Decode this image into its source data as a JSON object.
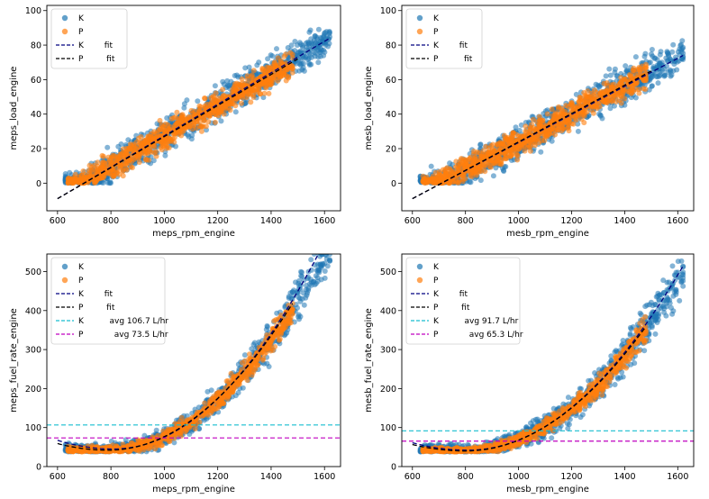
{
  "chart_data": [
    {
      "type": "scatter",
      "title": "",
      "xlabel": "meps_rpm_engine",
      "ylabel": "meps_load_engine",
      "xlim": [
        560,
        1660
      ],
      "ylim": [
        -16,
        103
      ],
      "xticks": [
        600,
        800,
        1000,
        1200,
        1400,
        1600
      ],
      "yticks": [
        0,
        20,
        40,
        60,
        80,
        100
      ],
      "legend_position": "upper-left",
      "series": [
        {
          "name": "K",
          "kind": "scatter",
          "color": "#1f77b4"
        },
        {
          "name": "P",
          "kind": "scatter",
          "color": "#ff7f0e"
        },
        {
          "name": "K        fit",
          "kind": "line",
          "color": "#000080",
          "dash": true,
          "x": [
            600,
            1620
          ],
          "y": [
            -9,
            84
          ]
        },
        {
          "name": "P         fit",
          "kind": "line",
          "color": "#000000",
          "dash": true,
          "x": [
            600,
            1500
          ],
          "y": [
            -9,
            72
          ]
        }
      ],
      "cloud": {
        "seed": 11,
        "model": "load",
        "K": {
          "x": [
            630,
            1620
          ],
          "a": -9,
          "b": 0.091
        },
        "P": {
          "x": [
            640,
            1480
          ],
          "a": -8,
          "b": 0.088
        }
      }
    },
    {
      "type": "scatter",
      "title": "",
      "xlabel": "mesb_rpm_engine",
      "ylabel": "mesb_load_engine",
      "xlim": [
        560,
        1660
      ],
      "ylim": [
        -16,
        103
      ],
      "xticks": [
        600,
        800,
        1000,
        1200,
        1400,
        1600
      ],
      "yticks": [
        0,
        20,
        40,
        60,
        80,
        100
      ],
      "legend_position": "upper-left",
      "series": [
        {
          "name": "K",
          "kind": "scatter",
          "color": "#1f77b4"
        },
        {
          "name": "P",
          "kind": "scatter",
          "color": "#ff7f0e"
        },
        {
          "name": "K        fit",
          "kind": "line",
          "color": "#000080",
          "dash": true,
          "x": [
            600,
            1620
          ],
          "y": [
            -9,
            74
          ]
        },
        {
          "name": "P          fit",
          "kind": "line",
          "color": "#000000",
          "dash": true,
          "x": [
            600,
            1500
          ],
          "y": [
            -9,
            65
          ]
        }
      ],
      "cloud": {
        "seed": 23,
        "model": "load",
        "K": {
          "x": [
            630,
            1620
          ],
          "a": -9,
          "b": 0.082
        },
        "P": {
          "x": [
            640,
            1480
          ],
          "a": -8,
          "b": 0.08
        }
      }
    },
    {
      "type": "scatter",
      "title": "",
      "xlabel": "meps_rpm_engine",
      "ylabel": "meps_fuel_rate_engine",
      "xlim": [
        560,
        1660
      ],
      "ylim": [
        0,
        545
      ],
      "xticks": [
        600,
        800,
        1000,
        1200,
        1400,
        1600
      ],
      "yticks": [
        0,
        100,
        200,
        300,
        400,
        500
      ],
      "legend_position": "upper-left",
      "series": [
        {
          "name": "K",
          "kind": "scatter",
          "color": "#1f77b4"
        },
        {
          "name": "P",
          "kind": "scatter",
          "color": "#ff7f0e"
        },
        {
          "name": "K        fit",
          "kind": "curve",
          "color": "#000080",
          "dash": true,
          "x": [
            600,
            1620
          ],
          "poly": [
            45,
            810,
            0.00085
          ]
        },
        {
          "name": "P         fit",
          "kind": "curve",
          "color": "#000000",
          "dash": true,
          "x": [
            600,
            1480
          ],
          "poly": [
            42,
            790,
            0.00079
          ]
        },
        {
          "name": "K          avg 106.7 L/hr",
          "kind": "hline",
          "color": "#17becf",
          "dash": true,
          "y": 106.7
        },
        {
          "name": "P            avg 73.5 L/hr",
          "kind": "hline",
          "color": "#c000c0",
          "dash": true,
          "y": 73.5
        }
      ],
      "cloud": {
        "seed": 37,
        "model": "fuel",
        "K": {
          "x": [
            630,
            1620
          ],
          "c": 45,
          "x0": 800,
          "k": 0.00078
        },
        "P": {
          "x": [
            640,
            1480
          ],
          "c": 42,
          "x0": 790,
          "k": 0.00076
        }
      }
    },
    {
      "type": "scatter",
      "title": "",
      "xlabel": "mesb_rpm_engine",
      "ylabel": "mesb_fuel_rate_engine",
      "xlim": [
        560,
        1660
      ],
      "ylim": [
        0,
        545
      ],
      "xticks": [
        600,
        800,
        1000,
        1200,
        1400,
        1600
      ],
      "yticks": [
        0,
        100,
        200,
        300,
        400,
        500
      ],
      "legend_position": "upper-left",
      "series": [
        {
          "name": "K",
          "kind": "scatter",
          "color": "#1f77b4"
        },
        {
          "name": "P",
          "kind": "scatter",
          "color": "#ff7f0e"
        },
        {
          "name": "K        fit",
          "kind": "curve",
          "color": "#000080",
          "dash": true,
          "x": [
            600,
            1620
          ],
          "poly": [
            42,
            810,
            0.00072
          ]
        },
        {
          "name": "P         fit",
          "kind": "curve",
          "color": "#000000",
          "dash": true,
          "x": [
            600,
            1480
          ],
          "poly": [
            40,
            800,
            0.00069
          ]
        },
        {
          "name": "K          avg 91.7 L/hr",
          "kind": "hline",
          "color": "#17becf",
          "dash": true,
          "y": 91.7
        },
        {
          "name": "P            avg 65.3 L/hr",
          "kind": "hline",
          "color": "#c000c0",
          "dash": true,
          "y": 65.3
        }
      ],
      "cloud": {
        "seed": 53,
        "model": "fuel",
        "K": {
          "x": [
            630,
            1620
          ],
          "c": 42,
          "x0": 800,
          "k": 0.00068
        },
        "P": {
          "x": [
            640,
            1480
          ],
          "c": 40,
          "x0": 795,
          "k": 0.00066
        }
      }
    }
  ]
}
